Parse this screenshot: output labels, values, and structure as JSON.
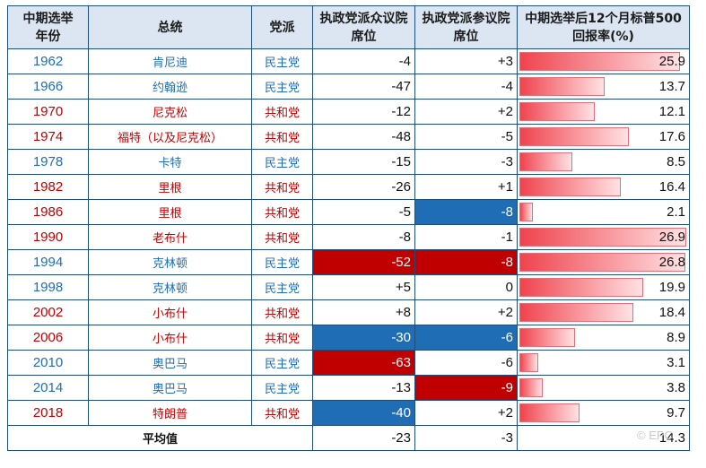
{
  "chart_data": {
    "type": "table",
    "headers": [
      "中期选举年份",
      "总统",
      "党派",
      "执政党派众议院席位",
      "执政党派参议院席位",
      "中期选举后12个月标普500回报率(%)"
    ],
    "rows": [
      {
        "year": "1962",
        "president": "肯尼迪",
        "party": "民主党",
        "house": "-4",
        "senate": "+3",
        "return": 25.9,
        "return_text": "25.9"
      },
      {
        "year": "1966",
        "president": "约翰逊",
        "party": "民主党",
        "house": "-47",
        "senate": "-4",
        "return": 13.7,
        "return_text": "13.7"
      },
      {
        "year": "1970",
        "president": "尼克松",
        "party": "共和党",
        "house": "-12",
        "senate": "+2",
        "return": 12.1,
        "return_text": "12.1"
      },
      {
        "year": "1974",
        "president": "福特（以及尼克松）",
        "party": "共和党",
        "house": "-48",
        "senate": "-5",
        "return": 17.6,
        "return_text": "17.6"
      },
      {
        "year": "1978",
        "president": "卡特",
        "party": "民主党",
        "house": "-15",
        "senate": "-3",
        "return": 8.5,
        "return_text": "8.5"
      },
      {
        "year": "1982",
        "president": "里根",
        "party": "共和党",
        "house": "-26",
        "senate": "+1",
        "return": 16.4,
        "return_text": "16.4"
      },
      {
        "year": "1986",
        "president": "里根",
        "party": "共和党",
        "house": "-5",
        "senate": "-8",
        "return": 2.1,
        "return_text": "2.1",
        "senate_hl": "blue"
      },
      {
        "year": "1990",
        "president": "老布什",
        "party": "共和党",
        "house": "-8",
        "senate": "-1",
        "return": 26.9,
        "return_text": "26.9"
      },
      {
        "year": "1994",
        "president": "克林顿",
        "party": "民主党",
        "house": "-52",
        "senate": "-8",
        "return": 26.8,
        "return_text": "26.8",
        "house_hl": "red",
        "senate_hl": "red"
      },
      {
        "year": "1998",
        "president": "克林顿",
        "party": "民主党",
        "house": "+5",
        "senate": "0",
        "return": 19.9,
        "return_text": "19.9"
      },
      {
        "year": "2002",
        "president": "小布什",
        "party": "共和党",
        "house": "+8",
        "senate": "+2",
        "return": 18.4,
        "return_text": "18.4"
      },
      {
        "year": "2006",
        "president": "小布什",
        "party": "共和党",
        "house": "-30",
        "senate": "-6",
        "return": 8.9,
        "return_text": "8.9",
        "house_hl": "blue",
        "senate_hl": "blue"
      },
      {
        "year": "2010",
        "president": "奥巴马",
        "party": "民主党",
        "house": "-63",
        "senate": "-6",
        "return": 3.1,
        "return_text": "3.1",
        "house_hl": "red"
      },
      {
        "year": "2014",
        "president": "奥巴马",
        "party": "民主党",
        "house": "-13",
        "senate": "-9",
        "return": 3.8,
        "return_text": "3.8",
        "senate_hl": "red"
      },
      {
        "year": "2018",
        "president": "特朗普",
        "party": "共和党",
        "house": "-40",
        "senate": "+2",
        "return": 9.7,
        "return_text": "9.7",
        "house_hl": "blue"
      }
    ],
    "average": {
      "label": "平均值",
      "house": "-23",
      "senate": "-3",
      "return": 14.3,
      "return_text": "14.3"
    },
    "bar_max": 26.9,
    "colors": {
      "democrat": "#1f6db5",
      "republican": "#c00000",
      "bar": "#f0434e",
      "header_bg": "#dce6f2"
    }
  },
  "watermark": "© EPC"
}
